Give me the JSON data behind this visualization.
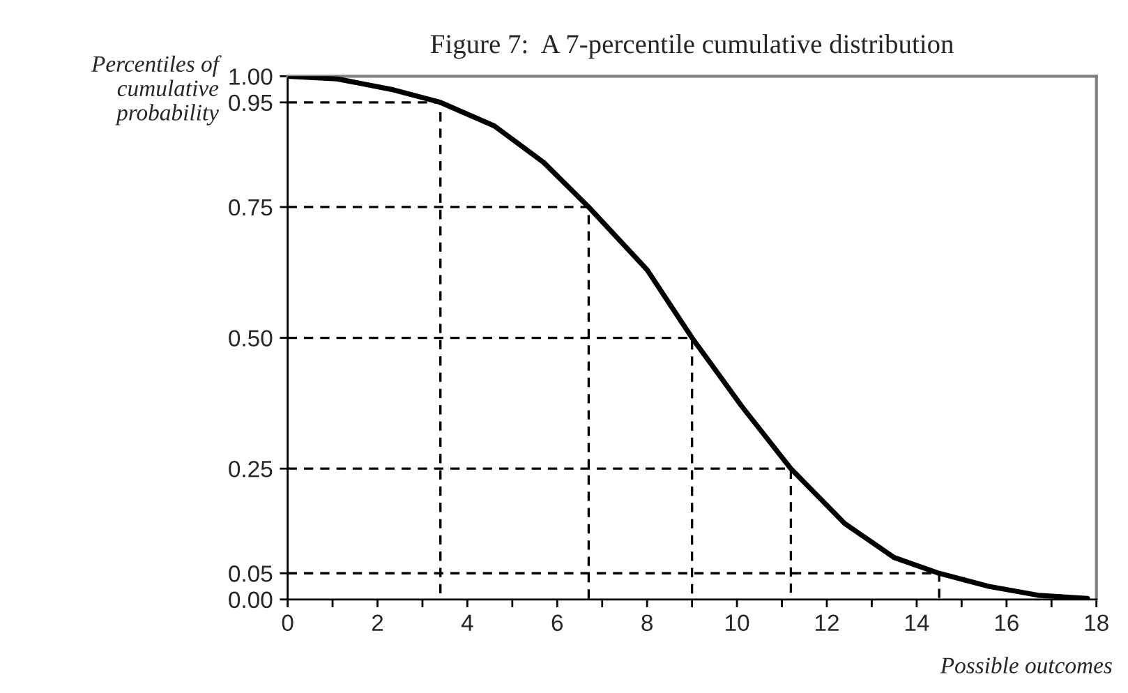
{
  "chart_data": {
    "type": "line",
    "title": "Figure 7:  A 7-percentile cumulative distribution",
    "xlabel": "Possible outcomes",
    "ylabel": "Percentiles of\ncumulative\nprobability",
    "series": [
      {
        "color": "#000000",
        "line_style": "solid",
        "x": [
          0,
          1.1,
          2.3,
          3.4,
          4.6,
          5.7,
          6.7,
          8.0,
          9.0,
          10.1,
          11.2,
          12.4,
          13.5,
          14.5,
          15.6,
          16.7,
          17.8
        ],
        "values": [
          1.0,
          0.995,
          0.975,
          0.95,
          0.905,
          0.835,
          0.75,
          0.63,
          0.5,
          0.37,
          0.25,
          0.145,
          0.08,
          0.05,
          0.025,
          0.008,
          0.002
        ]
      },
      {
        "color": "#000000",
        "line_style": "dashed",
        "x": [
          0,
          3.4,
          3.4
        ],
        "values": [
          0.95,
          0.95,
          0
        ]
      },
      {
        "color": "#000000",
        "line_style": "dashed",
        "x": [
          0,
          6.7,
          6.7
        ],
        "values": [
          0.75,
          0.75,
          0
        ]
      },
      {
        "color": "#000000",
        "line_style": "dashed",
        "x": [
          0,
          9.0,
          9.0
        ],
        "values": [
          0.5,
          0.5,
          0
        ]
      },
      {
        "color": "#000000",
        "line_style": "dashed",
        "x": [
          0,
          11.2,
          11.2
        ],
        "values": [
          0.25,
          0.25,
          0
        ]
      },
      {
        "color": "#000000",
        "line_style": "dashed",
        "x": [
          0,
          14.5,
          14.5
        ],
        "values": [
          0.05,
          0.05,
          0
        ]
      }
    ],
    "xlim": [
      0,
      18
    ],
    "ylim": [
      0,
      1
    ],
    "xticks": [
      0,
      {
        "value": 1,
        "label": null
      },
      2,
      {
        "value": 3,
        "label": null
      },
      4,
      {
        "value": 5,
        "label": null
      },
      6,
      {
        "value": 7,
        "label": null
      },
      8,
      {
        "value": 9,
        "label": null
      },
      10,
      {
        "value": 11,
        "label": null
      },
      12,
      {
        "value": 13,
        "label": null
      },
      14,
      {
        "value": 15,
        "label": null
      },
      16,
      {
        "value": 17,
        "label": null
      },
      18
    ],
    "yticks": [
      {
        "value": 0,
        "label": "0.00"
      },
      {
        "value": 0.05,
        "label": "0.05"
      },
      {
        "value": 0.25,
        "label": "0.25"
      },
      {
        "value": 0.5,
        "label": "0.50"
      },
      {
        "value": 0.75,
        "label": "0.75"
      },
      {
        "value": 0.95,
        "label": "0.95"
      },
      {
        "value": 1,
        "label": "1.00"
      }
    ],
    "grid": false,
    "legend": false,
    "marker": "none"
  }
}
